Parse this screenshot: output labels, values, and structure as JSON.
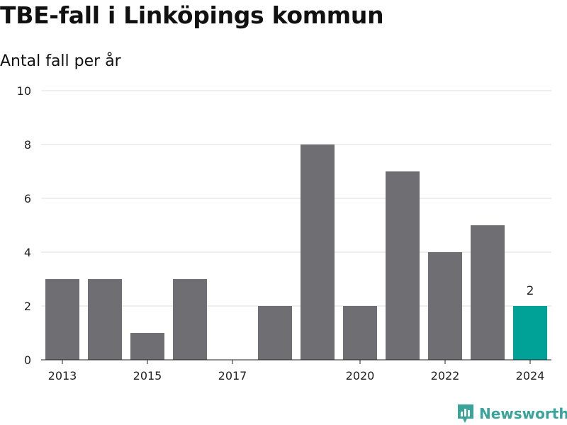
{
  "title": "TBE-fall i Linköpings kommun",
  "subtitle": "Antal fall per år",
  "brand": {
    "name": "Newsworthy",
    "color": "#3aa39a",
    "icon": "newsworthy-logo-icon"
  },
  "colors": {
    "bar": "#6e6e73",
    "highlight": "#00a197",
    "grid": "#dddddd",
    "axis": "#222222"
  },
  "chart_data": {
    "type": "bar",
    "title": "TBE-fall i Linköpings kommun",
    "ylabel": "Antal fall per år",
    "categories": [
      2013,
      2014,
      2015,
      2016,
      2017,
      2018,
      2019,
      2020,
      2021,
      2022,
      2023,
      2024
    ],
    "values": [
      3,
      3,
      1,
      3,
      0,
      2,
      8,
      2,
      7,
      4,
      5,
      2
    ],
    "highlight_index": 11,
    "highlight_label": "2",
    "ylim": [
      0,
      10
    ],
    "yticks": [
      0,
      2,
      4,
      6,
      8,
      10
    ],
    "xticks": [
      "2013",
      "2015",
      "2017",
      "2020",
      "2022",
      "2024"
    ],
    "grid": true
  }
}
